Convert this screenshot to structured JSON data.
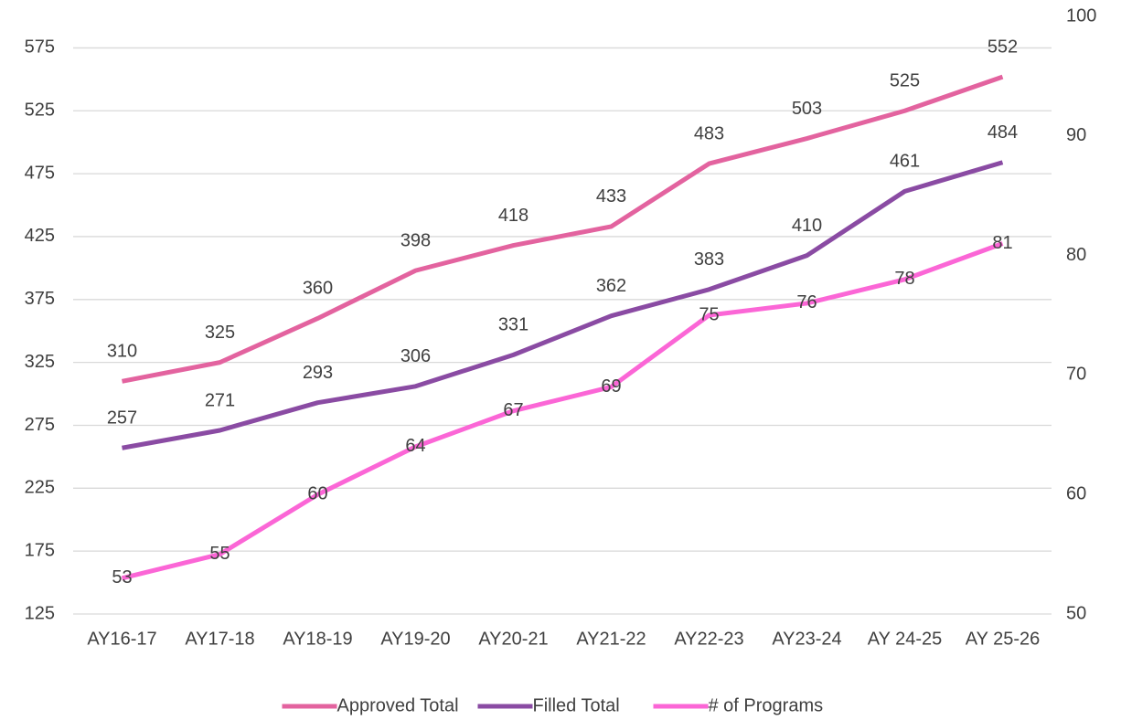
{
  "chart_data": {
    "type": "line",
    "categories": [
      "AY16-17",
      "AY17-18",
      "AY18-19",
      "AY19-20",
      "AY20-21",
      "AY21-22",
      "AY22-23",
      "AY23-24",
      "AY 24-25",
      "AY 25-26"
    ],
    "series": [
      {
        "name": "Approved Total",
        "color": "#e3639f",
        "values": [
          310,
          325,
          360,
          398,
          418,
          433,
          483,
          503,
          525,
          552
        ]
      },
      {
        "name": "Filled Total",
        "color": "#8a4ba3",
        "values": [
          257,
          271,
          293,
          306,
          331,
          362,
          383,
          410,
          461,
          484
        ]
      },
      {
        "name": "# of Programs",
        "color": "#fb66d6",
        "axis": "y2",
        "values": [
          53,
          55,
          60,
          64,
          67,
          69,
          75,
          76,
          78,
          81
        ]
      }
    ],
    "ylim": [
      125,
      600
    ],
    "yticks": [
      125,
      175,
      225,
      275,
      325,
      375,
      425,
      475,
      525,
      575
    ],
    "y2lim": [
      50,
      100
    ],
    "y2ticks": [
      50,
      60,
      70,
      80,
      90,
      100
    ],
    "grid": true,
    "legend": "bottom"
  }
}
